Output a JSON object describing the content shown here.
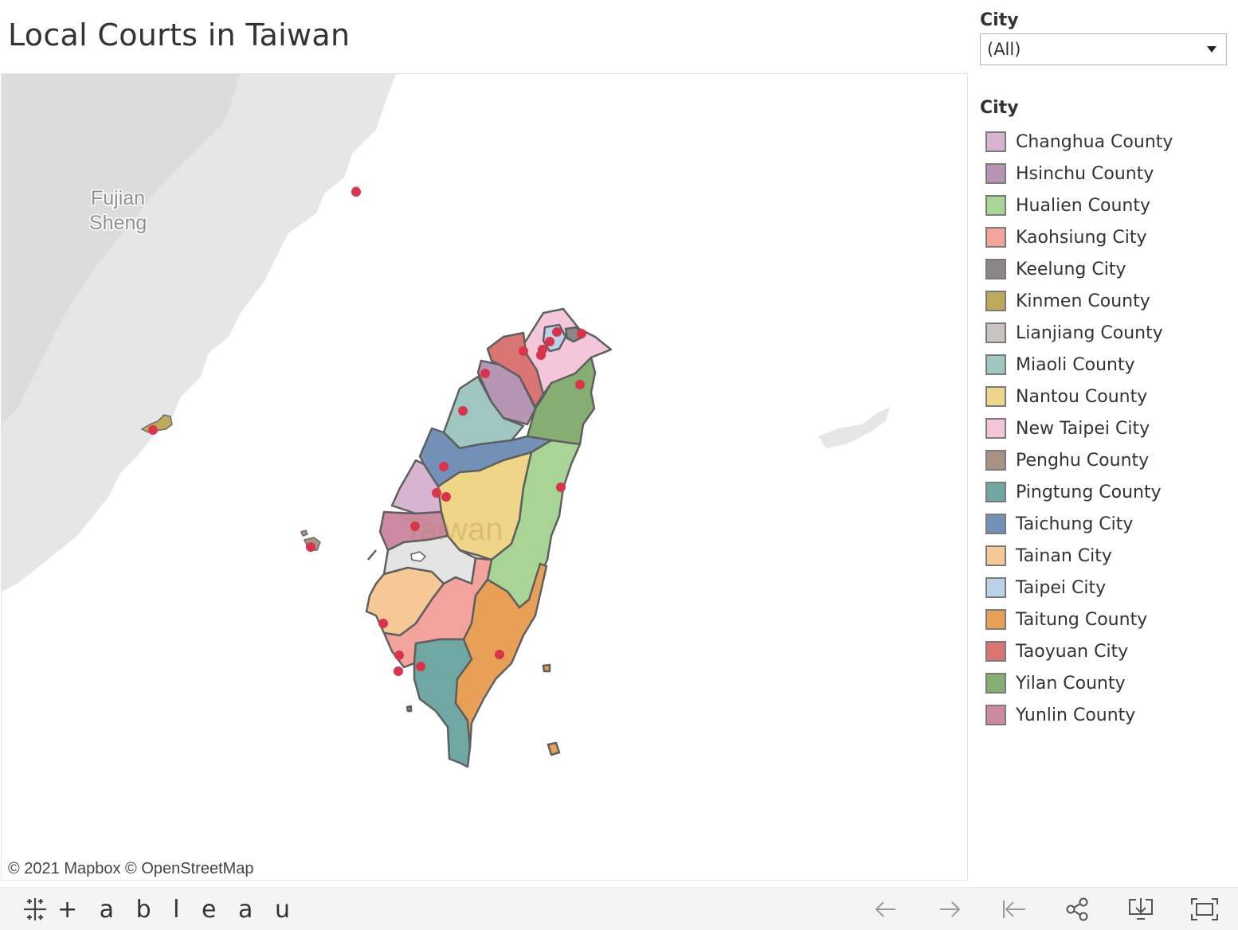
{
  "title": "Local Courts in Taiwan",
  "filter": {
    "label": "City",
    "value": "(All)"
  },
  "legend": {
    "title": "City",
    "items": [
      {
        "label": "Changhua County",
        "color": "#d7b5d0"
      },
      {
        "label": "Hsinchu County",
        "color": "#b795b4"
      },
      {
        "label": "Hualien County",
        "color": "#a8d496"
      },
      {
        "label": "Kaohsiung City",
        "color": "#f2a39c"
      },
      {
        "label": "Keelung City",
        "color": "#8b8787"
      },
      {
        "label": "Kinmen County",
        "color": "#bca95c"
      },
      {
        "label": "Lianjiang County",
        "color": "#cbc3bf"
      },
      {
        "label": "Miaoli County",
        "color": "#9fc6c0"
      },
      {
        "label": "Nantou County",
        "color": "#efd587"
      },
      {
        "label": "New Taipei City",
        "color": "#f3c7d9"
      },
      {
        "label": "Penghu County",
        "color": "#a99385"
      },
      {
        "label": "Pingtung County",
        "color": "#6fa7a2"
      },
      {
        "label": "Taichung City",
        "color": "#7390b7"
      },
      {
        "label": "Tainan City",
        "color": "#f6c896"
      },
      {
        "label": "Taipei City",
        "color": "#bad3ea"
      },
      {
        "label": "Taitung County",
        "color": "#e8a056"
      },
      {
        "label": "Taoyuan City",
        "color": "#d97673"
      },
      {
        "label": "Yilan County",
        "color": "#86ae72"
      },
      {
        "label": "Yunlin County",
        "color": "#cd8aa3"
      }
    ]
  },
  "map": {
    "labels": {
      "province": "Fujian\nSheng",
      "island": "Taiwan"
    },
    "attribution": "© 2021 Mapbox  © OpenStreetMap",
    "court_marker_color": "#d8344b"
  },
  "footer": {
    "logo": "+ a b l e a u",
    "logo_text": "+ableau",
    "buttons": [
      "undo-icon",
      "redo-icon",
      "revert-icon",
      "share-icon",
      "download-icon",
      "fullscreen-icon"
    ]
  }
}
